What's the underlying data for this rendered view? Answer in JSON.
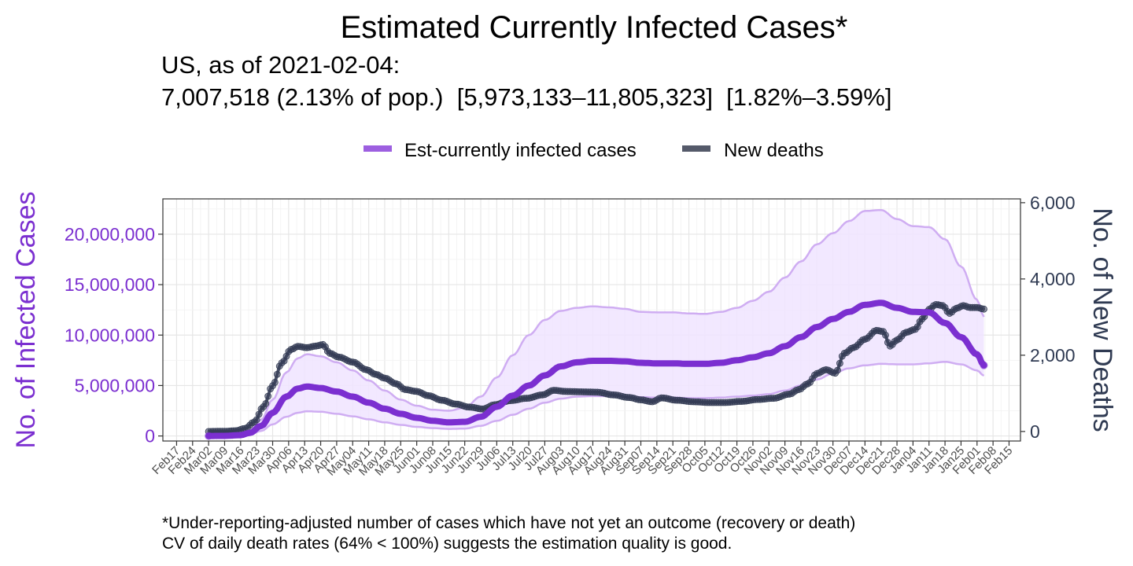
{
  "chart_data": {
    "type": "line",
    "title": "Estimated Currently Infected Cases*",
    "subtitle_lines": [
      "US, as of 2021-02-04:",
      "7,007,518 (2.13% of pop.)  [5,973,133–11,805,323]  [1.82%–3.59%]"
    ],
    "legend": {
      "position": "top",
      "entries": [
        "Est-currently infected cases",
        "New deaths"
      ]
    },
    "ylabel_left": "No. of Infected Cases",
    "ylabel_right": "No. of New Deaths",
    "ylim_left": [
      -500000,
      23500000
    ],
    "ylim_right": [
      -250,
      6100
    ],
    "yticks_left": [
      0,
      5000000,
      10000000,
      15000000,
      20000000
    ],
    "yticks_left_labels": [
      "0",
      "5,000,000",
      "10,000,000",
      "15,000,000",
      "20,000,000"
    ],
    "yticks_right": [
      0,
      2000,
      4000,
      6000
    ],
    "yticks_right_labels": [
      "0",
      "2,000",
      "4,000",
      "6,000"
    ],
    "x_range": [
      "2020-02-11",
      "2021-02-20"
    ],
    "xtick_dates": [
      "2020-02-17",
      "2020-02-24",
      "2020-03-02",
      "2020-03-09",
      "2020-03-16",
      "2020-03-23",
      "2020-03-30",
      "2020-04-06",
      "2020-04-13",
      "2020-04-20",
      "2020-04-27",
      "2020-05-04",
      "2020-05-11",
      "2020-05-18",
      "2020-05-25",
      "2020-06-01",
      "2020-06-08",
      "2020-06-15",
      "2020-06-22",
      "2020-06-29",
      "2020-07-06",
      "2020-07-13",
      "2020-07-20",
      "2020-07-27",
      "2020-08-03",
      "2020-08-10",
      "2020-08-17",
      "2020-08-24",
      "2020-08-31",
      "2020-09-07",
      "2020-09-14",
      "2020-09-21",
      "2020-09-28",
      "2020-10-05",
      "2020-10-12",
      "2020-10-19",
      "2020-10-26",
      "2020-11-02",
      "2020-11-09",
      "2020-11-16",
      "2020-11-23",
      "2020-11-30",
      "2020-12-07",
      "2020-12-14",
      "2020-12-21",
      "2020-12-28",
      "2021-01-04",
      "2021-01-11",
      "2021-01-18",
      "2021-01-25",
      "2021-02-01",
      "2021-02-08",
      "2021-02-15"
    ],
    "xtick_labels": [
      "Feb17",
      "Feb24",
      "Mar02",
      "Mar09",
      "Mar16",
      "Mar23",
      "Mar30",
      "Apr06",
      "Apr13",
      "Apr20",
      "Apr27",
      "May04",
      "May11",
      "May18",
      "May25",
      "Jun01",
      "Jun08",
      "Jun15",
      "Jun22",
      "Jun29",
      "Jul06",
      "Jul13",
      "Jul20",
      "Jul27",
      "Aug03",
      "Aug10",
      "Aug17",
      "Aug24",
      "Aug31",
      "Sep07",
      "Sep14",
      "Sep21",
      "Sep28",
      "Oct05",
      "Oct12",
      "Oct19",
      "Oct26",
      "Nov02",
      "Nov09",
      "Nov16",
      "Nov23",
      "Nov30",
      "Dec07",
      "Dec14",
      "Dec21",
      "Dec28",
      "Jan04",
      "Jan11",
      "Jan18",
      "Jan25",
      "Feb01",
      "Feb08",
      "Feb15"
    ],
    "grid": true,
    "series": [
      {
        "name": "Est-currently infected cases",
        "axis": "left",
        "color": "#7b2fd0",
        "x": [
          "2020-03-02",
          "2020-03-09",
          "2020-03-16",
          "2020-03-20",
          "2020-03-25",
          "2020-03-30",
          "2020-04-05",
          "2020-04-10",
          "2020-04-14",
          "2020-04-20",
          "2020-04-27",
          "2020-05-04",
          "2020-05-11",
          "2020-05-18",
          "2020-05-25",
          "2020-06-01",
          "2020-06-08",
          "2020-06-15",
          "2020-06-22",
          "2020-06-29",
          "2020-07-06",
          "2020-07-13",
          "2020-07-20",
          "2020-07-27",
          "2020-08-03",
          "2020-08-10",
          "2020-08-17",
          "2020-08-24",
          "2020-08-31",
          "2020-09-07",
          "2020-09-14",
          "2020-09-21",
          "2020-09-28",
          "2020-10-05",
          "2020-10-12",
          "2020-10-19",
          "2020-10-26",
          "2020-11-02",
          "2020-11-09",
          "2020-11-16",
          "2020-11-23",
          "2020-11-30",
          "2020-12-07",
          "2020-12-14",
          "2020-12-21",
          "2020-12-28",
          "2021-01-04",
          "2021-01-11",
          "2021-01-18",
          "2021-01-25",
          "2021-02-01",
          "2021-02-04"
        ],
        "y": [
          0,
          10000,
          80000,
          300000,
          1000000,
          2300000,
          3900000,
          4700000,
          4900000,
          4750000,
          4400000,
          3900000,
          3300000,
          2700000,
          2200000,
          1800000,
          1500000,
          1350000,
          1400000,
          1900000,
          2900000,
          4000000,
          5000000,
          6000000,
          6900000,
          7300000,
          7450000,
          7450000,
          7400000,
          7250000,
          7200000,
          7200000,
          7150000,
          7150000,
          7250000,
          7500000,
          7800000,
          8200000,
          8900000,
          9800000,
          10800000,
          11600000,
          12300000,
          13000000,
          13200000,
          12700000,
          12300000,
          12250000,
          11200000,
          9800000,
          8100000,
          7007518
        ]
      },
      {
        "name": "ci_upper",
        "axis": "left",
        "x": [
          "2020-03-02",
          "2020-03-09",
          "2020-03-16",
          "2020-03-20",
          "2020-03-25",
          "2020-03-30",
          "2020-04-05",
          "2020-04-10",
          "2020-04-14",
          "2020-04-20",
          "2020-04-27",
          "2020-05-04",
          "2020-05-11",
          "2020-05-18",
          "2020-05-25",
          "2020-06-01",
          "2020-06-08",
          "2020-06-15",
          "2020-06-22",
          "2020-06-29",
          "2020-07-06",
          "2020-07-13",
          "2020-07-20",
          "2020-07-27",
          "2020-08-03",
          "2020-08-10",
          "2020-08-17",
          "2020-08-24",
          "2020-08-31",
          "2020-09-07",
          "2020-09-14",
          "2020-09-21",
          "2020-09-28",
          "2020-10-05",
          "2020-10-12",
          "2020-10-19",
          "2020-10-26",
          "2020-11-02",
          "2020-11-09",
          "2020-11-16",
          "2020-11-23",
          "2020-11-30",
          "2020-12-07",
          "2020-12-14",
          "2020-12-21",
          "2020-12-28",
          "2021-01-04",
          "2021-01-11",
          "2021-01-18",
          "2021-01-25",
          "2021-02-01",
          "2021-02-04"
        ],
        "y": [
          0,
          20000,
          150000,
          500000,
          1600000,
          3600000,
          6300000,
          7700000,
          8100000,
          7900000,
          7300000,
          6500000,
          5500000,
          4500000,
          3600000,
          3000000,
          2600000,
          2500000,
          2800000,
          3900000,
          5800000,
          8000000,
          10000000,
          11500000,
          12400000,
          12700000,
          12850000,
          12750000,
          12600000,
          12300000,
          12250000,
          12250000,
          12150000,
          12100000,
          12300000,
          12700000,
          13400000,
          14300000,
          15700000,
          17300000,
          19000000,
          20100000,
          21300000,
          22300000,
          22400000,
          21500000,
          20800000,
          20700000,
          19500000,
          16800000,
          13500000,
          11805323
        ]
      },
      {
        "name": "ci_lower",
        "axis": "left",
        "x": [
          "2020-03-02",
          "2020-03-09",
          "2020-03-16",
          "2020-03-20",
          "2020-03-25",
          "2020-03-30",
          "2020-04-05",
          "2020-04-10",
          "2020-04-14",
          "2020-04-20",
          "2020-04-27",
          "2020-05-04",
          "2020-05-11",
          "2020-05-18",
          "2020-05-25",
          "2020-06-01",
          "2020-06-08",
          "2020-06-15",
          "2020-06-22",
          "2020-06-29",
          "2020-07-06",
          "2020-07-13",
          "2020-07-20",
          "2020-07-27",
          "2020-08-03",
          "2020-08-10",
          "2020-08-17",
          "2020-08-24",
          "2020-08-31",
          "2020-09-07",
          "2020-09-14",
          "2020-09-21",
          "2020-09-28",
          "2020-10-05",
          "2020-10-12",
          "2020-10-19",
          "2020-10-26",
          "2020-11-02",
          "2020-11-09",
          "2020-11-16",
          "2020-11-23",
          "2020-11-30",
          "2020-12-07",
          "2020-12-14",
          "2020-12-21",
          "2020-12-28",
          "2021-01-04",
          "2021-01-11",
          "2021-01-18",
          "2021-01-25",
          "2021-02-01",
          "2021-02-04"
        ],
        "y": [
          0,
          5000,
          40000,
          150000,
          500000,
          1150000,
          1900000,
          2300000,
          2450000,
          2400000,
          2200000,
          1950000,
          1650000,
          1350000,
          1100000,
          900000,
          780000,
          700000,
          730000,
          1000000,
          1500000,
          2100000,
          2700000,
          3300000,
          3700000,
          3900000,
          3950000,
          3950000,
          3900000,
          3850000,
          3800000,
          3800000,
          3750000,
          3750000,
          3800000,
          3900000,
          4000000,
          4150000,
          4500000,
          5000000,
          5600000,
          6200000,
          6700000,
          7000000,
          7150000,
          7100000,
          7100000,
          7200000,
          7350000,
          7100000,
          6500000,
          5973133
        ]
      },
      {
        "name": "New deaths",
        "axis": "right",
        "color": "#353d56",
        "x": [
          "2020-03-02",
          "2020-03-09",
          "2020-03-14",
          "2020-03-18",
          "2020-03-22",
          "2020-03-26",
          "2020-03-30",
          "2020-04-03",
          "2020-04-07",
          "2020-04-10",
          "2020-04-14",
          "2020-04-18",
          "2020-04-21",
          "2020-04-24",
          "2020-04-28",
          "2020-05-04",
          "2020-05-10",
          "2020-05-14",
          "2020-05-18",
          "2020-05-23",
          "2020-05-27",
          "2020-06-01",
          "2020-06-06",
          "2020-06-12",
          "2020-06-18",
          "2020-06-24",
          "2020-06-30",
          "2020-07-05",
          "2020-07-12",
          "2020-07-19",
          "2020-07-26",
          "2020-07-31",
          "2020-08-05",
          "2020-08-12",
          "2020-08-19",
          "2020-08-26",
          "2020-09-02",
          "2020-09-07",
          "2020-09-12",
          "2020-09-16",
          "2020-09-23",
          "2020-09-30",
          "2020-10-07",
          "2020-10-14",
          "2020-10-21",
          "2020-10-28",
          "2020-11-04",
          "2020-11-11",
          "2020-11-15",
          "2020-11-19",
          "2020-11-23",
          "2020-11-27",
          "2020-12-01",
          "2020-12-05",
          "2020-12-09",
          "2020-12-14",
          "2020-12-19",
          "2020-12-22",
          "2020-12-25",
          "2020-12-28",
          "2021-01-01",
          "2021-01-05",
          "2021-01-08",
          "2021-01-11",
          "2021-01-14",
          "2021-01-17",
          "2021-01-20",
          "2021-01-23",
          "2021-01-26",
          "2021-01-29",
          "2021-02-01",
          "2021-02-04"
        ],
        "y": [
          0,
          5,
          20,
          80,
          250,
          650,
          1200,
          1800,
          2150,
          2230,
          2200,
          2240,
          2280,
          2050,
          1950,
          1820,
          1620,
          1500,
          1400,
          1250,
          1100,
          1050,
          940,
          820,
          720,
          640,
          590,
          700,
          810,
          870,
          960,
          1080,
          1050,
          1040,
          1030,
          960,
          890,
          830,
          780,
          880,
          820,
          780,
          760,
          760,
          790,
          840,
          870,
          980,
          1100,
          1250,
          1520,
          1620,
          1530,
          2050,
          2200,
          2420,
          2650,
          2620,
          2240,
          2400,
          2600,
          2680,
          2950,
          3200,
          3330,
          3300,
          3100,
          3230,
          3300,
          3250,
          3250,
          3210
        ]
      }
    ],
    "footnote_lines": [
      "*Under-reporting-adjusted number of cases which have not yet an outcome (recovery or death)",
      "CV of daily death rates (64% < 100%) suggests the estimation quality is good."
    ],
    "colors": {
      "cases": "#7b2fd0",
      "band_fill": "#f0e4ff",
      "band_edge": "#cfadf2",
      "deaths": "#353d56",
      "left_axis_text": "#7b2fd0",
      "right_axis_text": "#2f3a52"
    }
  }
}
